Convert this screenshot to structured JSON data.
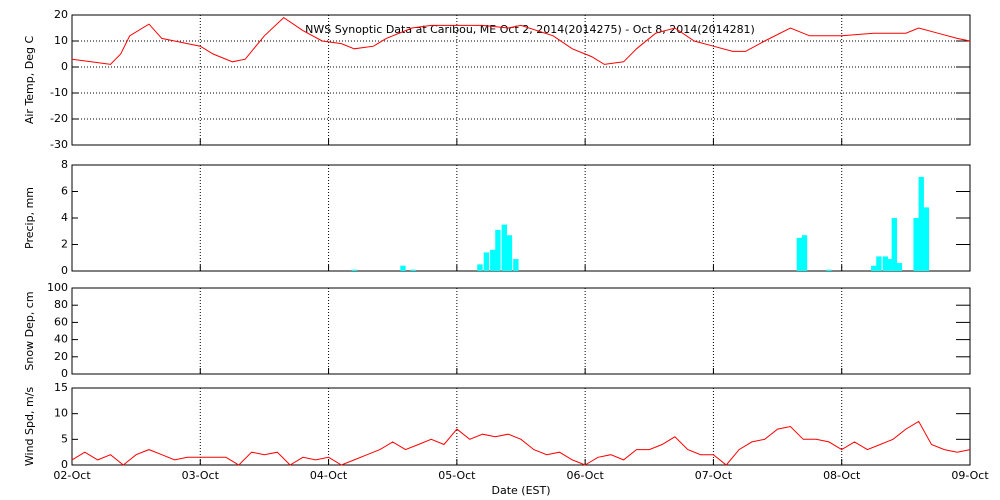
{
  "chart_data": [
    {
      "type": "line",
      "title": "NWS Synoptic Data at Caribou, ME   Oct  2, 2014(2014275) - Oct  8, 2014(2014281)",
      "y_label": "Air Temp, Deg C",
      "color": "#ff0000",
      "xlim": [
        0,
        7
      ],
      "xticks": [
        0,
        1,
        2,
        3,
        4,
        5,
        6,
        7
      ],
      "xgrid": true,
      "ylim": [
        -30,
        20
      ],
      "yticks": [
        -30,
        -20,
        -10,
        0,
        10,
        20
      ],
      "ygrid": true,
      "x": [
        0,
        0.15,
        0.3,
        0.38,
        0.45,
        0.6,
        0.7,
        0.8,
        1.0,
        1.1,
        1.25,
        1.35,
        1.5,
        1.65,
        1.8,
        1.95,
        2.1,
        2.2,
        2.35,
        2.45,
        2.65,
        2.8,
        3.0,
        3.2,
        3.4,
        3.5,
        3.75,
        3.9,
        4.05,
        4.15,
        4.3,
        4.4,
        4.55,
        4.7,
        4.85,
        5.0,
        5.15,
        5.25,
        5.4,
        5.6,
        5.75,
        6.0,
        6.25,
        6.5,
        6.6,
        6.75,
        6.9,
        7.0
      ],
      "values": [
        3,
        2,
        1,
        5,
        12,
        16.5,
        11,
        10,
        8,
        5,
        2,
        3,
        12,
        19,
        14,
        10,
        9,
        7,
        8,
        11,
        15,
        16,
        16,
        16,
        15,
        16,
        12,
        7,
        4,
        1,
        2,
        7,
        13,
        15,
        10,
        8,
        6,
        6,
        10,
        15,
        12,
        12,
        13,
        13,
        15,
        13,
        11,
        10
      ]
    },
    {
      "type": "bar",
      "y_label": "Precip, mm",
      "color": "#00ffff",
      "xlim": [
        0,
        7
      ],
      "xticks": [
        0,
        1,
        2,
        3,
        4,
        5,
        6,
        7
      ],
      "xgrid": true,
      "ylim": [
        0,
        8
      ],
      "yticks": [
        0,
        2,
        4,
        6,
        8
      ],
      "x": [
        2.2,
        2.58,
        2.66,
        3.18,
        3.23,
        3.28,
        3.32,
        3.37,
        3.41,
        3.46,
        5.67,
        5.71,
        5.9,
        6.25,
        6.29,
        6.34,
        6.37,
        6.41,
        6.45,
        6.58,
        6.62,
        6.66
      ],
      "values": [
        0.1,
        0.4,
        0.1,
        0.5,
        1.4,
        1.6,
        3.1,
        3.5,
        2.7,
        0.9,
        2.5,
        2.7,
        0.1,
        0.4,
        1.1,
        1.1,
        0.9,
        4.0,
        0.6,
        4.0,
        7.1,
        4.8
      ]
    },
    {
      "type": "line",
      "y_label": "Snow Dep, cm",
      "xlim": [
        0,
        7
      ],
      "xticks": [
        0,
        1,
        2,
        3,
        4,
        5,
        6,
        7
      ],
      "xgrid": true,
      "ylim": [
        0,
        100
      ],
      "yticks": [
        0,
        20,
        40,
        60,
        80,
        100
      ]
    },
    {
      "type": "line",
      "y_label": "Wind Spd, m/s",
      "x_label": "Date (EST)",
      "color": "#ff0000",
      "xlim": [
        0,
        7
      ],
      "xticks": [
        {
          "value": 0,
          "label": "02-Oct"
        },
        {
          "value": 1,
          "label": "03-Oct"
        },
        {
          "value": 2,
          "label": "04-Oct"
        },
        {
          "value": 3,
          "label": "05-Oct"
        },
        {
          "value": 4,
          "label": "06-Oct"
        },
        {
          "value": 5,
          "label": "07-Oct"
        },
        {
          "value": 6,
          "label": "08-Oct"
        },
        {
          "value": 7,
          "label": "09-Oct"
        }
      ],
      "xgrid": true,
      "ylim": [
        0,
        15
      ],
      "yticks": [
        0,
        5,
        10,
        15
      ],
      "x": [
        0,
        0.1,
        0.2,
        0.3,
        0.4,
        0.5,
        0.6,
        0.7,
        0.8,
        0.9,
        1.0,
        1.2,
        1.3,
        1.4,
        1.5,
        1.6,
        1.7,
        1.8,
        1.9,
        2.0,
        2.1,
        2.2,
        2.3,
        2.4,
        2.5,
        2.6,
        2.7,
        2.8,
        2.9,
        3.0,
        3.1,
        3.2,
        3.3,
        3.4,
        3.5,
        3.6,
        3.7,
        3.8,
        3.9,
        4.0,
        4.1,
        4.2,
        4.3,
        4.4,
        4.5,
        4.6,
        4.7,
        4.8,
        4.9,
        5.0,
        5.1,
        5.2,
        5.3,
        5.4,
        5.5,
        5.6,
        5.7,
        5.8,
        5.9,
        6.0,
        6.1,
        6.2,
        6.3,
        6.4,
        6.5,
        6.6,
        6.7,
        6.8,
        6.9,
        7.0
      ],
      "values": [
        1,
        2.5,
        1,
        2,
        0,
        2,
        3,
        2,
        1,
        1.5,
        1.5,
        1.5,
        0,
        2.5,
        2,
        2.5,
        0,
        1.5,
        1,
        1.5,
        0,
        1,
        2,
        3,
        4.5,
        3,
        4,
        5,
        4,
        7,
        5,
        6,
        5.5,
        6,
        5,
        3,
        2,
        2.5,
        1,
        0,
        1.5,
        2,
        1,
        3,
        3,
        4,
        5.5,
        3,
        2,
        2,
        0,
        3,
        4.5,
        5,
        7,
        7.5,
        5,
        5,
        4.5,
        3,
        4.5,
        3,
        4,
        5,
        7,
        8.5,
        4,
        3,
        2.5,
        3
      ]
    }
  ]
}
